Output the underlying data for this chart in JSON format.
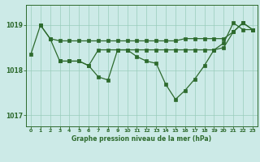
{
  "background_color": "#cceae7",
  "plot_bg_color": "#cceae7",
  "grid_color": "#99ccbb",
  "line_color": "#2d6a2d",
  "marker_color": "#2d6a2d",
  "title": "Graphe pression niveau de la mer (hPa)",
  "ylim": [
    1016.75,
    1019.45
  ],
  "xlim": [
    -0.5,
    23.5
  ],
  "yticks": [
    1017,
    1018,
    1019
  ],
  "xticks": [
    0,
    1,
    2,
    3,
    4,
    5,
    6,
    7,
    8,
    9,
    10,
    11,
    12,
    13,
    14,
    15,
    16,
    17,
    18,
    19,
    20,
    21,
    22,
    23
  ],
  "series1_x": [
    0,
    1,
    2,
    3,
    4,
    5,
    6,
    7,
    8,
    9,
    10,
    11,
    12,
    13,
    14,
    15,
    16,
    17,
    18,
    19,
    20,
    21,
    22,
    23
  ],
  "series1_y": [
    1018.35,
    1019.0,
    1018.7,
    1018.65,
    1018.65,
    1018.65,
    1018.65,
    1018.65,
    1018.65,
    1018.65,
    1018.65,
    1018.65,
    1018.65,
    1018.65,
    1018.65,
    1018.65,
    1018.7,
    1018.7,
    1018.7,
    1018.7,
    1018.7,
    1018.85,
    1019.05,
    1018.9
  ],
  "series2_x": [
    1,
    2,
    3,
    4,
    5,
    6,
    7,
    8,
    9,
    10,
    11,
    12,
    13,
    14,
    15,
    16,
    17,
    18,
    19,
    20,
    21,
    22,
    23
  ],
  "series2_y": [
    1019.0,
    1018.7,
    1018.2,
    1018.2,
    1018.2,
    1018.1,
    1018.45,
    1018.45,
    1018.45,
    1018.45,
    1018.45,
    1018.45,
    1018.45,
    1018.45,
    1018.45,
    1018.45,
    1018.45,
    1018.45,
    1018.45,
    1018.5,
    1018.85,
    1019.05,
    1018.9
  ],
  "series3_x": [
    3,
    4,
    5,
    6,
    7,
    8,
    9,
    10,
    11,
    12,
    13,
    14,
    15,
    16,
    17,
    18,
    19,
    20,
    21,
    22,
    23
  ],
  "series3_y": [
    1018.2,
    1018.2,
    1018.2,
    1018.1,
    1017.85,
    1017.78,
    1018.45,
    1018.45,
    1018.3,
    1018.2,
    1018.15,
    1017.68,
    1017.35,
    1017.55,
    1017.8,
    1018.1,
    1018.45,
    1018.6,
    1019.05,
    1018.9,
    1018.9
  ]
}
